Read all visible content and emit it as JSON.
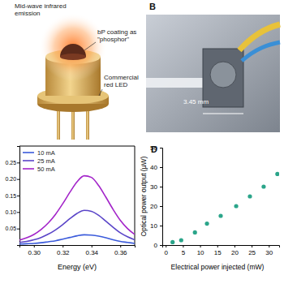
{
  "figure": {
    "panel_a": {
      "texts": [
        [
          "Mid-wave infrared",
          "emission"
        ],
        [
          "bP coating as",
          "\"phosphor\""
        ],
        [
          "Commercial",
          "red LED"
        ]
      ]
    },
    "panel_b": {
      "label": "B",
      "scale_text": "3.45 mm"
    }
  },
  "chart_data": [
    {
      "type": "line",
      "x_label": "Energy (eV)",
      "x": [
        0.29,
        0.295,
        0.3,
        0.305,
        0.31,
        0.315,
        0.32,
        0.325,
        0.33,
        0.335,
        0.34,
        0.345,
        0.35,
        0.355,
        0.36,
        0.365,
        0.37
      ],
      "series": [
        {
          "name": "10 mA",
          "color": "#3b5bdb",
          "values": [
            0.003,
            0.004,
            0.005,
            0.007,
            0.01,
            0.013,
            0.018,
            0.023,
            0.028,
            0.031,
            0.03,
            0.027,
            0.022,
            0.016,
            0.011,
            0.008,
            0.005
          ]
        },
        {
          "name": "25 mA",
          "color": "#5a45c8",
          "values": [
            0.008,
            0.011,
            0.016,
            0.023,
            0.033,
            0.046,
            0.062,
            0.08,
            0.096,
            0.105,
            0.102,
            0.09,
            0.072,
            0.054,
            0.037,
            0.025,
            0.016
          ]
        },
        {
          "name": "50 mA",
          "color": "#a324c9",
          "values": [
            0.015,
            0.022,
            0.032,
            0.047,
            0.067,
            0.093,
            0.125,
            0.16,
            0.192,
            0.21,
            0.205,
            0.18,
            0.145,
            0.108,
            0.075,
            0.05,
            0.032
          ]
        }
      ],
      "xlim": [
        0.29,
        0.37
      ],
      "xticks": [
        {
          "value": 0.3,
          "label": "0.30"
        },
        {
          "value": 0.32,
          "label": "0.32"
        },
        {
          "value": 0.34,
          "label": "0.34"
        },
        {
          "value": 0.36,
          "label": "0.36"
        }
      ],
      "ylim": [
        0,
        0.3
      ],
      "yticks": [
        {
          "value": 0.05,
          "label": "0.05"
        },
        {
          "value": 0.1,
          "label": "0.10"
        },
        {
          "value": 0.15,
          "label": "0.15"
        },
        {
          "value": 0.2,
          "label": "0.20"
        },
        {
          "value": 0.25,
          "label": "0.25"
        }
      ],
      "legend": "top-left"
    },
    {
      "type": "scatter",
      "title": "D",
      "x_label": "Electrical power injected (mW)",
      "y_label": "Optical power output (µW)",
      "x": [
        2,
        4.5,
        8.5,
        12,
        16,
        20.5,
        24.5,
        28.5,
        32.5
      ],
      "values": [
        1.5,
        2.5,
        6.5,
        11,
        15,
        20,
        25,
        30,
        36.5
      ],
      "color": "#2ba58a",
      "marker": "circle",
      "xlim": [
        -1,
        33
      ],
      "xticks": [
        0,
        5,
        10,
        15,
        20,
        25,
        30
      ],
      "ylim": [
        0,
        50
      ],
      "yticks": [
        0,
        10,
        20,
        30,
        40,
        50
      ]
    }
  ]
}
